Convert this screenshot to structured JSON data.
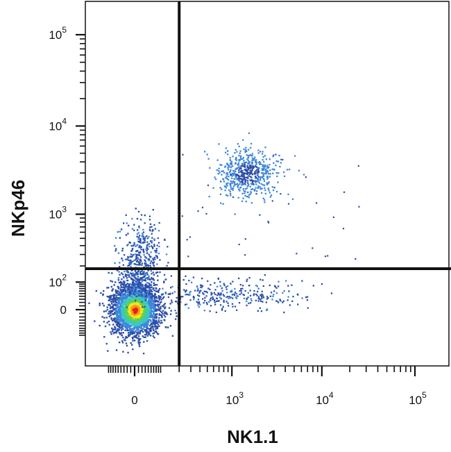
{
  "chart_data": {
    "type": "scatter",
    "style": "flow cytometry density dot plot with quadrant gates",
    "xlabel": "NK1.1",
    "ylabel": "NKp46",
    "x_scale": "biexponential (log above ~10^2)",
    "y_scale": "biexponential (log above ~10^2)",
    "x_ticks": [
      {
        "value": 0,
        "base": "0",
        "exp": ""
      },
      {
        "value": 1000,
        "base": "10",
        "exp": "3"
      },
      {
        "value": 10000,
        "base": "10",
        "exp": "4"
      },
      {
        "value": 100000,
        "base": "10",
        "exp": "5"
      }
    ],
    "y_ticks": [
      {
        "value": 0,
        "base": "0",
        "exp": ""
      },
      {
        "value": 100,
        "base": "10",
        "exp": "2"
      },
      {
        "value": 1000,
        "base": "10",
        "exp": "3"
      },
      {
        "value": 10000,
        "base": "10",
        "exp": "4"
      },
      {
        "value": 100000,
        "base": "10",
        "exp": "5"
      }
    ],
    "gates": {
      "x_threshold": 200,
      "y_threshold": 180
    },
    "populations": [
      {
        "name": "",
        "center": [
          0,
          0
        ],
        "density": "very high"
      },
      {
        "name": "",
        "center": [
          1500,
          3000
        ],
        "density": "medium"
      },
      {
        "name": "",
        "center": [
          800,
          50
        ],
        "density": "low"
      },
      {
        "name": "",
        "center": [
          30,
          300
        ],
        "density": "low"
      }
    ],
    "density_colors": [
      "#2c4fa8",
      "#3f86d9",
      "#3cc6c4",
      "#5fd24d",
      "#f4e81c",
      "#f79a1a",
      "#e51e1e"
    ],
    "grid": false,
    "legend": "none"
  }
}
